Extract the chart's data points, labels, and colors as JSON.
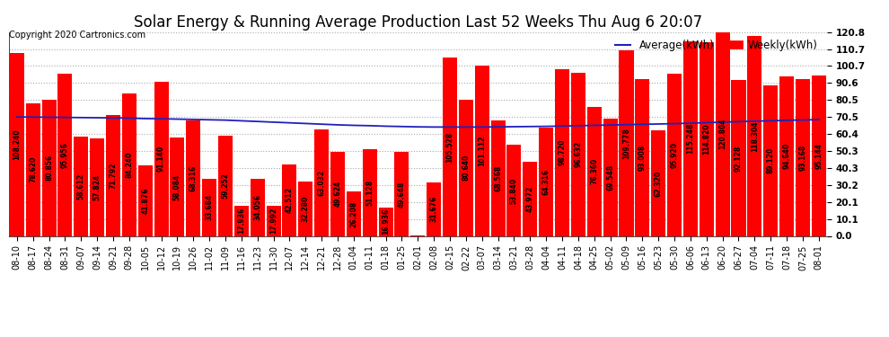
{
  "title": "Solar Energy & Running Average Production Last 52 Weeks Thu Aug 6 20:07",
  "copyright": "Copyright 2020 Cartronics.com",
  "legend_avg": "Average(kWh)",
  "legend_weekly": "Weekly(kWh)",
  "bar_color": "#ff0000",
  "avg_line_color": "#2020bb",
  "background_color": "#ffffff",
  "plot_bg_color": "#ffffff",
  "grid_color": "#aaaaaa",
  "yticks": [
    0.0,
    10.1,
    20.1,
    30.2,
    40.3,
    50.3,
    60.4,
    70.5,
    80.5,
    90.6,
    100.7,
    110.7,
    120.8
  ],
  "categories": [
    "08-10",
    "08-17",
    "08-24",
    "08-31",
    "09-07",
    "09-14",
    "09-21",
    "09-28",
    "10-05",
    "10-12",
    "10-19",
    "10-26",
    "11-02",
    "11-09",
    "11-16",
    "11-23",
    "11-30",
    "12-07",
    "12-14",
    "12-21",
    "12-28",
    "01-04",
    "01-11",
    "01-18",
    "01-25",
    "02-01",
    "02-08",
    "02-15",
    "02-22",
    "03-07",
    "03-14",
    "03-21",
    "03-28",
    "04-04",
    "04-11",
    "04-18",
    "04-25",
    "05-02",
    "05-09",
    "05-16",
    "05-23",
    "05-30",
    "06-06",
    "06-13",
    "06-20",
    "06-27",
    "07-04",
    "07-11",
    "07-18",
    "07-25",
    "08-01"
  ],
  "values": [
    108.24,
    78.62,
    80.856,
    95.956,
    58.612,
    57.824,
    71.792,
    84.24,
    41.876,
    91.14,
    58.084,
    68.316,
    33.684,
    59.252,
    17.936,
    34.056,
    17.992,
    42.512,
    32.28,
    63.032,
    49.624,
    26.208,
    51.128,
    16.936,
    49.648,
    0.096,
    31.676,
    105.528,
    80.64,
    101.112,
    68.568,
    53.84,
    43.972,
    64.316,
    98.72,
    96.632,
    76.36,
    69.548,
    109.778,
    93.008,
    62.32,
    95.92,
    115.248,
    114.82,
    120.804,
    92.128,
    118.304,
    89.12,
    94.64,
    93.168,
    95.144
  ],
  "avg_values": [
    70.5,
    70.4,
    70.3,
    70.2,
    70.1,
    70.0,
    69.9,
    69.8,
    69.5,
    69.4,
    69.2,
    69.0,
    68.8,
    68.6,
    68.2,
    67.8,
    67.4,
    67.0,
    66.6,
    66.2,
    65.8,
    65.5,
    65.3,
    65.0,
    64.8,
    64.6,
    64.5,
    64.5,
    64.5,
    64.5,
    64.6,
    64.7,
    64.8,
    64.9,
    65.1,
    65.3,
    65.5,
    65.7,
    65.9,
    66.1,
    66.3,
    66.5,
    66.8,
    67.1,
    67.4,
    67.7,
    68.0,
    68.2,
    68.5,
    68.7,
    68.9
  ],
  "ylim": [
    0.0,
    120.8
  ],
  "title_fontsize": 12,
  "tick_fontsize": 7.5,
  "bar_label_fontsize": 5.5,
  "legend_fontsize": 8.5,
  "copyright_fontsize": 7
}
